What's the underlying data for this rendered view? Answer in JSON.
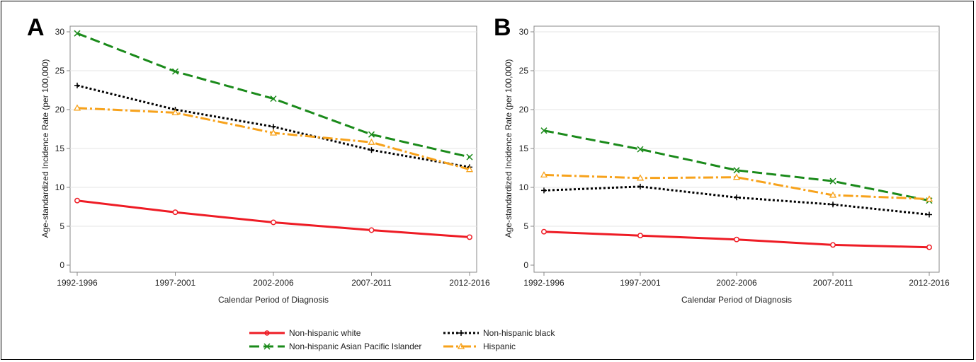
{
  "colors": {
    "white": "#ee1c25",
    "black": "#000000",
    "asian": "#1a8a1a",
    "hispanic": "#f7a21b",
    "grid": "#e6e6e6",
    "axis": "#888888"
  },
  "legend": {
    "items": [
      "Non-hispanic white",
      "Non-hispanic black",
      "Non-hispanic Asian Pacific Islander",
      "Hispanic"
    ]
  },
  "chart_data": [
    {
      "type": "line",
      "panel": "A",
      "xlabel": "Calendar Period of Diagnosis",
      "ylabel": "Age-standardized Incidence Rate (per 100,000)",
      "categories": [
        "1992-1996",
        "1997-2001",
        "2002-2006",
        "2007-2011",
        "2012-2016"
      ],
      "ylim": [
        0,
        30
      ],
      "yticks": [
        "0",
        "5",
        "10",
        "15",
        "20",
        "25",
        "30"
      ],
      "grid": true,
      "series": [
        {
          "name": "Non-hispanic white",
          "values": [
            8.3,
            6.8,
            5.5,
            4.5,
            3.6
          ]
        },
        {
          "name": "Non-hispanic black",
          "values": [
            23.1,
            20.0,
            17.8,
            14.8,
            12.6
          ]
        },
        {
          "name": "Non-hispanic Asian Pacific Islander",
          "values": [
            29.8,
            24.9,
            21.4,
            16.8,
            13.9
          ]
        },
        {
          "name": "Hispanic",
          "values": [
            20.2,
            19.6,
            17.0,
            15.8,
            12.3
          ]
        }
      ]
    },
    {
      "type": "line",
      "panel": "B",
      "xlabel": "Calendar Period of Diagnosis",
      "ylabel": "Age-standardized Incidence Rate (per 100,000)",
      "categories": [
        "1992-1996",
        "1997-2001",
        "2002-2006",
        "2007-2011",
        "2012-2016"
      ],
      "ylim": [
        0,
        30
      ],
      "yticks": [
        "0",
        "5",
        "10",
        "15",
        "20",
        "25",
        "30"
      ],
      "grid": true,
      "series": [
        {
          "name": "Non-hispanic white",
          "values": [
            4.3,
            3.8,
            3.3,
            2.6,
            2.3
          ]
        },
        {
          "name": "Non-hispanic black",
          "values": [
            9.6,
            10.1,
            8.7,
            7.8,
            6.5
          ]
        },
        {
          "name": "Non-hispanic Asian Pacific Islander",
          "values": [
            17.3,
            14.9,
            12.2,
            10.8,
            8.3
          ]
        },
        {
          "name": "Hispanic",
          "values": [
            11.6,
            11.2,
            11.3,
            9.0,
            8.5
          ]
        }
      ]
    }
  ]
}
